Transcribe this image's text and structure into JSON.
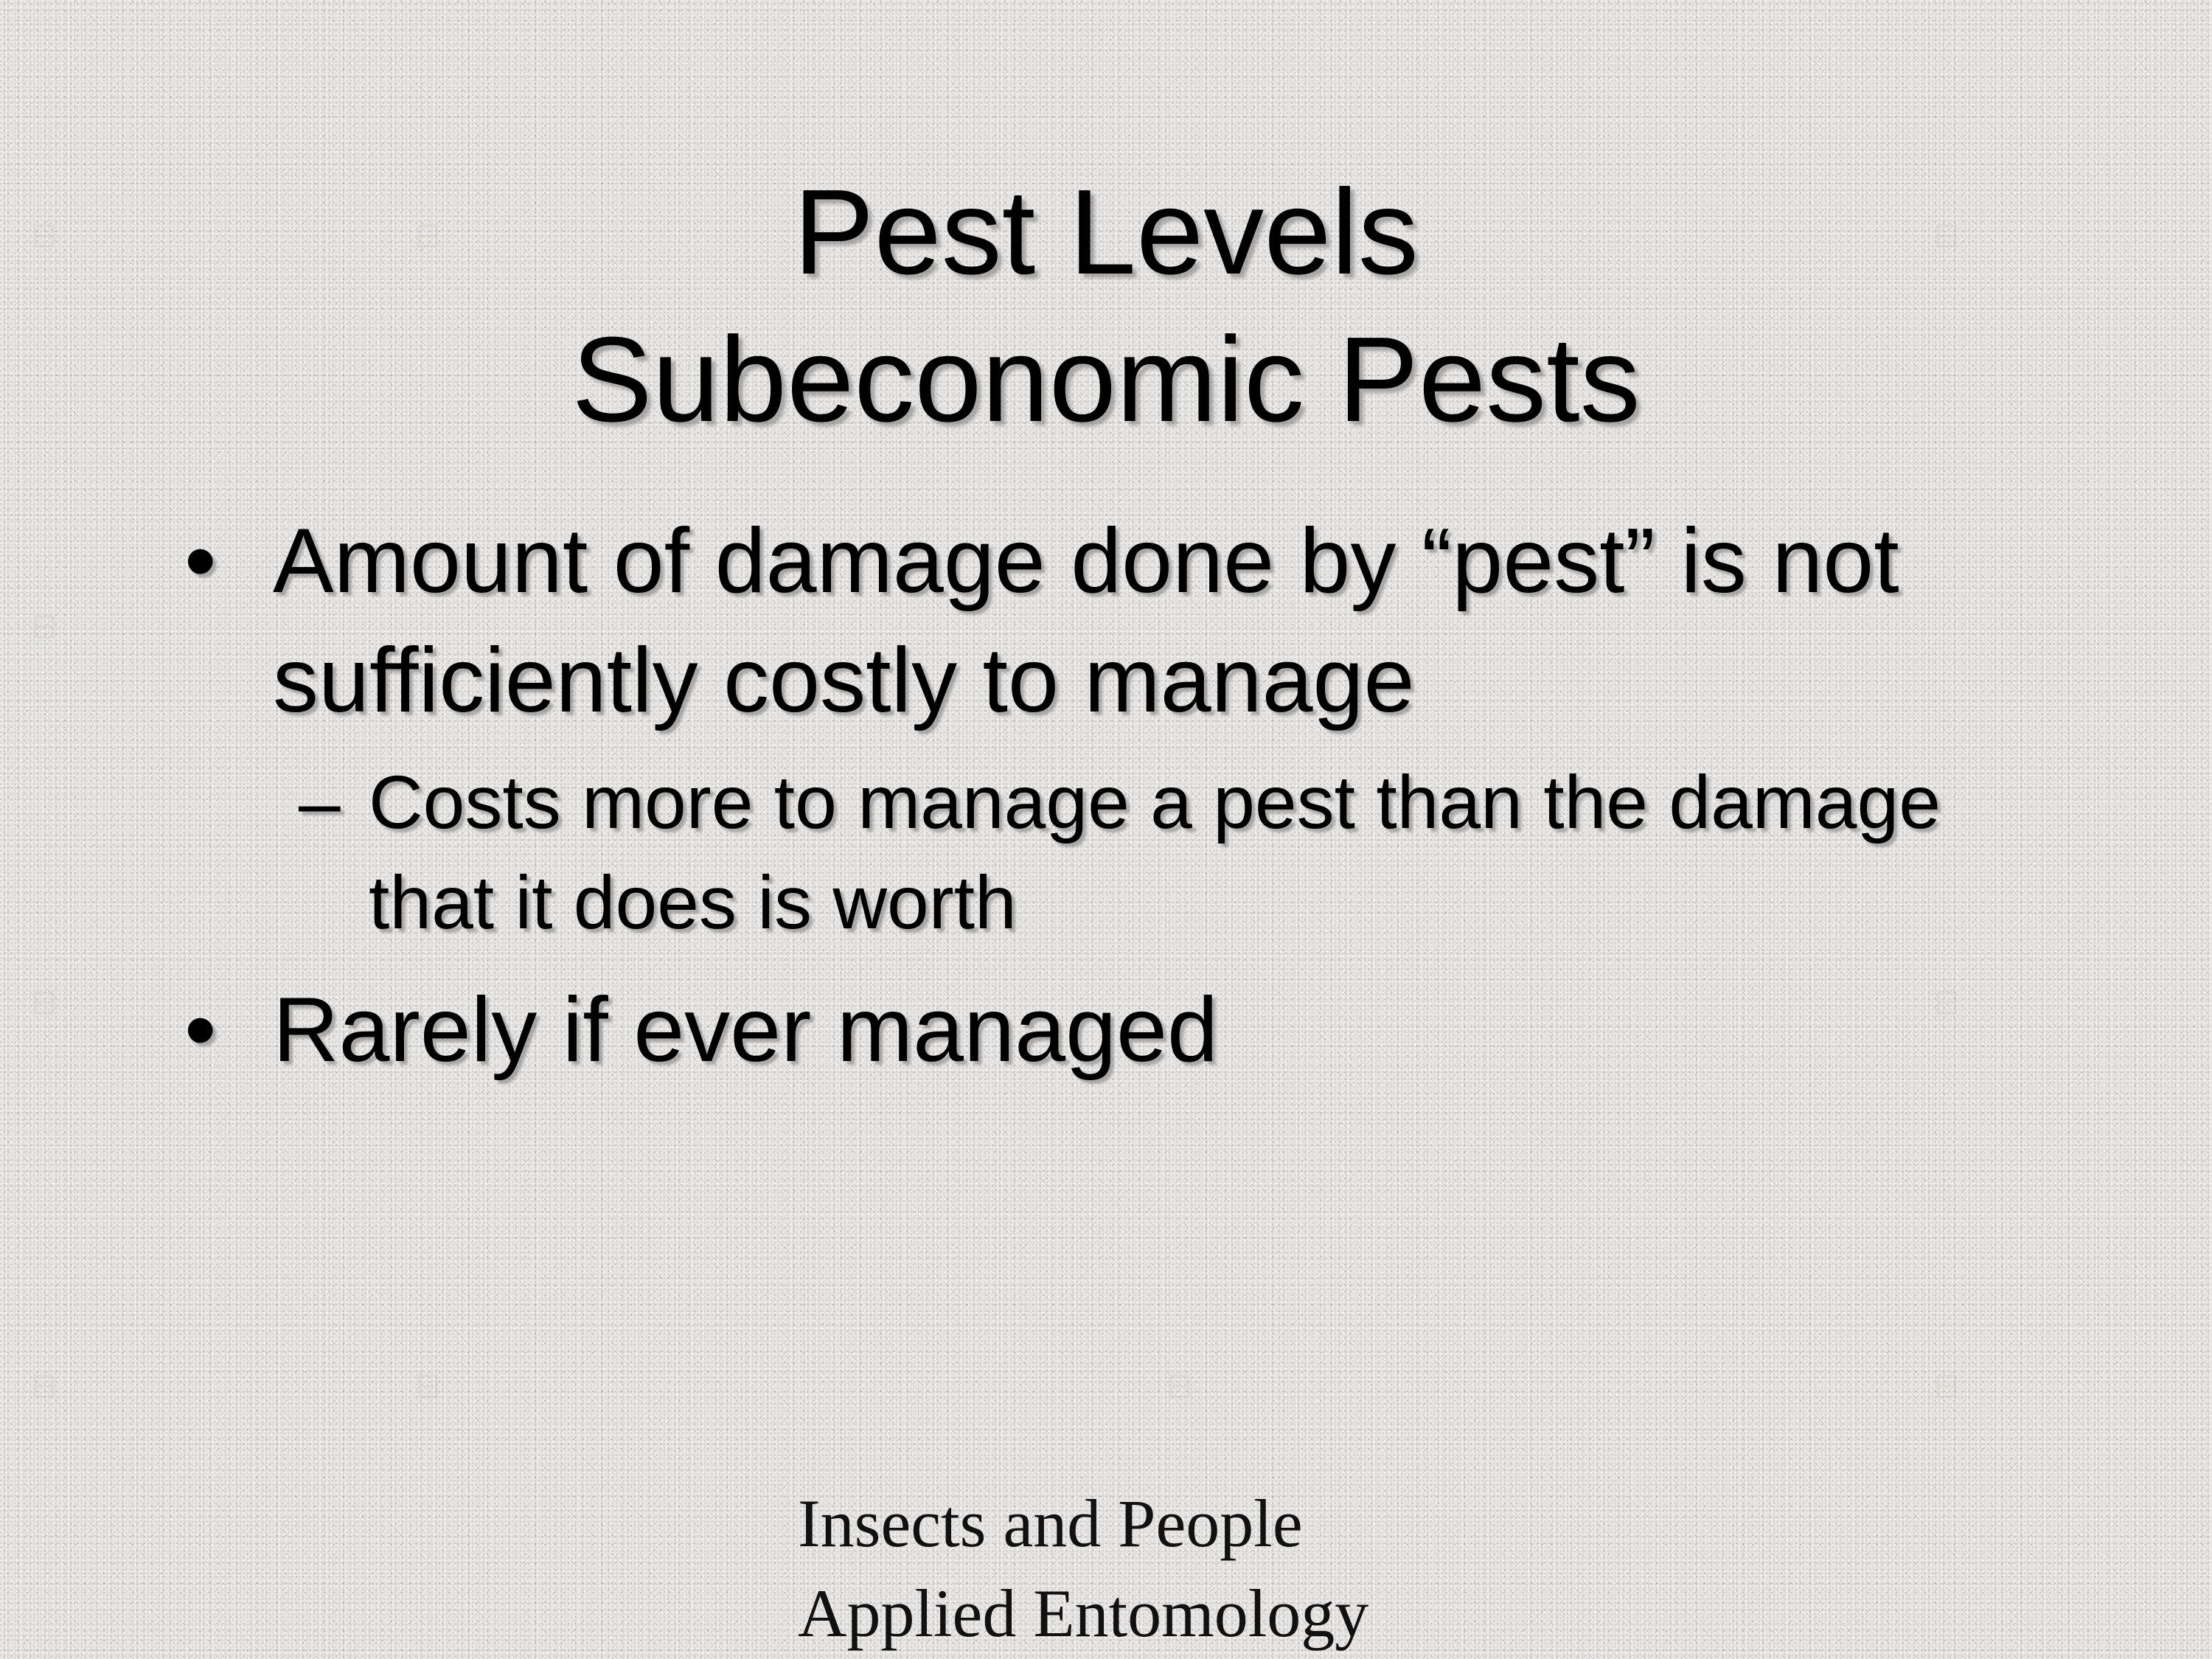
{
  "slide": {
    "title_line1": "Pest Levels",
    "title_line2": "Subeconomic Pests",
    "bullets": [
      {
        "marker": "•",
        "text": "Amount of damage done by “pest” is not sufficiently costly to manage",
        "sub": {
          "marker": "–",
          "text": "Costs more to manage a pest than the damage that it does is worth"
        }
      },
      {
        "marker": "•",
        "text": "Rarely if ever managed"
      }
    ],
    "footer_line1": "Insects and People",
    "footer_line2": "Applied Entomology"
  },
  "colors": {
    "background": "#e6e4e2",
    "text": "#000000",
    "shadow": "#787878"
  },
  "icons": {
    "watermark": "faint-emblem-icon"
  }
}
